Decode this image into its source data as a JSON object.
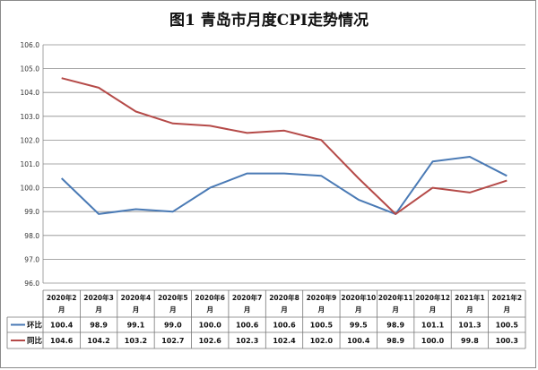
{
  "chart_data": {
    "type": "line",
    "title": "图1  青岛市月度CPI走势情况",
    "categories": [
      [
        "2020年2",
        "月"
      ],
      [
        "2020年3",
        "月"
      ],
      [
        "2020年4",
        "月"
      ],
      [
        "2020年5",
        "月"
      ],
      [
        "2020年6",
        "月"
      ],
      [
        "2020年7",
        "月"
      ],
      [
        "2020年8",
        "月"
      ],
      [
        "2020年9",
        "月"
      ],
      [
        "2020年10",
        "月"
      ],
      [
        "2020年11",
        "月"
      ],
      [
        "2020年12",
        "月"
      ],
      [
        "2021年1",
        "月"
      ],
      [
        "2021年2",
        "月"
      ]
    ],
    "series": [
      {
        "name": "环比",
        "color": "#4a7ab5",
        "values": [
          100.4,
          98.9,
          99.1,
          99.0,
          100.0,
          100.6,
          100.6,
          100.5,
          99.5,
          98.9,
          101.1,
          101.3,
          100.5
        ],
        "labels": [
          "100.4",
          "98.9",
          "99.1",
          "99.0",
          "100.0",
          "100.6",
          "100.6",
          "100.5",
          "99.5",
          "98.9",
          "101.1",
          "101.3",
          "100.5"
        ]
      },
      {
        "name": "同比",
        "color": "#b54a48",
        "values": [
          104.6,
          104.2,
          103.2,
          102.7,
          102.6,
          102.3,
          102.4,
          102.0,
          100.4,
          98.9,
          100.0,
          99.8,
          100.3
        ],
        "labels": [
          "104.6",
          "104.2",
          "103.2",
          "102.7",
          "102.6",
          "102.3",
          "102.4",
          "102.0",
          "100.4",
          "98.9",
          "100.0",
          "99.8",
          "100.3"
        ]
      }
    ],
    "ylim": [
      96.0,
      106.0
    ],
    "yticks": [
      "96.0",
      "97.0",
      "98.0",
      "99.0",
      "100.0",
      "101.0",
      "102.0",
      "103.0",
      "104.0",
      "105.0",
      "106.0"
    ],
    "grid": true,
    "legend": "data-table"
  }
}
